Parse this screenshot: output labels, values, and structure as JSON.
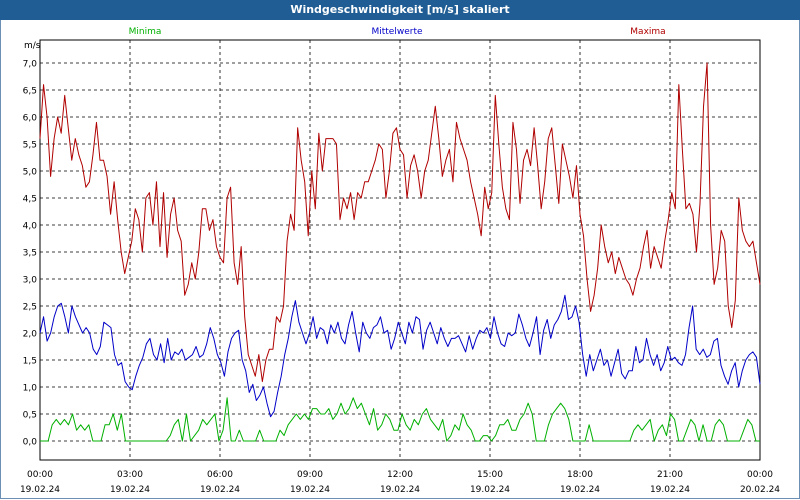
{
  "window": {
    "title": "Windgeschwindigkeit [m/s] skaliert"
  },
  "chart_data": {
    "type": "line",
    "title": "Windgeschwindigkeit [m/s] skaliert",
    "ylabel": "m/s",
    "ylim": [
      0,
      7.5
    ],
    "xlim": [
      0,
      24
    ],
    "grid": true,
    "legend": "top",
    "y_ticks": [
      "0,0",
      "0,5",
      "1,0",
      "1,5",
      "2,0",
      "2,5",
      "3,0",
      "3,5",
      "4,0",
      "4,5",
      "5,0",
      "5,5",
      "6,0",
      "6,5",
      "7,0"
    ],
    "x_ticks": [
      {
        "time": "00:00",
        "date": "19.02.24"
      },
      {
        "time": "03:00",
        "date": "19.02.24"
      },
      {
        "time": "06:00",
        "date": "19.02.24"
      },
      {
        "time": "09:00",
        "date": "19.02.24"
      },
      {
        "time": "12:00",
        "date": "19.02.24"
      },
      {
        "time": "15:00",
        "date": "19.02.24"
      },
      {
        "time": "18:00",
        "date": "19.02.24"
      },
      {
        "time": "21:00",
        "date": "19.02.24"
      },
      {
        "time": "00:00",
        "date": "20.02.24"
      }
    ],
    "series": [
      {
        "name": "Minima",
        "color": "#00b000",
        "values": [
          0,
          0,
          0,
          0.3,
          0.4,
          0.3,
          0.4,
          0.3,
          0.5,
          0.2,
          0.3,
          0.2,
          0.3,
          0,
          0,
          0,
          0.3,
          0.3,
          0.5,
          0.2,
          0.5,
          0,
          0,
          0,
          0,
          0,
          0,
          0,
          0,
          0,
          0,
          0,
          0.1,
          0.3,
          0.4,
          0,
          0.5,
          0,
          0.1,
          0.2,
          0.4,
          0.3,
          0.4,
          0.5,
          0,
          0.2,
          0.8,
          0,
          0,
          0.2,
          0,
          0,
          0,
          0,
          0.2,
          0,
          0,
          0,
          0,
          0.2,
          0.1,
          0.3,
          0.4,
          0.5,
          0.4,
          0.5,
          0.4,
          0.6,
          0.6,
          0.5,
          0.5,
          0.6,
          0.4,
          0.5,
          0.7,
          0.5,
          0.6,
          0.8,
          0.6,
          0.7,
          0.5,
          0.3,
          0.6,
          0.2,
          0.3,
          0.5,
          0.4,
          0.2,
          0.2,
          0.5,
          0.3,
          0.2,
          0.4,
          0.3,
          0.5,
          0.6,
          0.4,
          0.3,
          0.2,
          0.4,
          0,
          0.1,
          0.3,
          0.2,
          0.5,
          0.3,
          0.2,
          0,
          0,
          0.1,
          0.1,
          0,
          0.1,
          0.3,
          0.3,
          0.4,
          0.2,
          0.2,
          0.4,
          0.5,
          0.7,
          0.5,
          0,
          0,
          0,
          0.3,
          0.5,
          0.6,
          0.7,
          0.6,
          0.4,
          0,
          0,
          0,
          0,
          0.3,
          0,
          0,
          0,
          0,
          0,
          0,
          0,
          0,
          0,
          0,
          0.2,
          0.3,
          0.2,
          0.3,
          0.4,
          0,
          0.2,
          0.3,
          0.1,
          0.5,
          0.4,
          0,
          0,
          0.2,
          0.4,
          0.3,
          0,
          0.3,
          0,
          0,
          0.3,
          0.4,
          0.3,
          0,
          0,
          0,
          0,
          0.2,
          0.4,
          0.3,
          0,
          0
        ]
      },
      {
        "name": "Mittelwerte",
        "color": "#0000c8",
        "values": [
          2.0,
          2.3,
          1.85,
          2.0,
          2.3,
          2.5,
          2.55,
          2.3,
          2.0,
          2.5,
          2.3,
          2.15,
          2.0,
          2.1,
          2.0,
          1.7,
          1.6,
          1.75,
          2.2,
          2.15,
          2.1,
          1.6,
          1.4,
          1.45,
          1.1,
          1.0,
          0.95,
          1.2,
          1.4,
          1.55,
          1.8,
          1.9,
          1.6,
          1.5,
          1.8,
          1.45,
          1.9,
          1.5,
          1.65,
          1.6,
          1.7,
          1.5,
          1.55,
          1.6,
          1.75,
          1.55,
          1.6,
          1.8,
          2.1,
          1.9,
          1.6,
          1.45,
          1.2,
          1.65,
          1.9,
          2.0,
          2.05,
          1.5,
          1.3,
          0.9,
          1.05,
          0.75,
          0.85,
          1.0,
          0.7,
          0.45,
          0.55,
          0.9,
          1.2,
          1.6,
          1.9,
          2.3,
          2.6,
          2.2,
          2.0,
          1.8,
          2.0,
          2.3,
          1.9,
          2.1,
          2.05,
          1.8,
          2.15,
          2.0,
          2.2,
          1.9,
          1.8,
          2.15,
          2.4,
          2.0,
          1.65,
          2.2,
          2.0,
          1.9,
          2.1,
          2.15,
          2.3,
          2.0,
          2.05,
          1.7,
          1.9,
          2.2,
          2.0,
          1.8,
          2.2,
          2.0,
          2.3,
          2.25,
          1.7,
          2.05,
          2.2,
          2.0,
          1.8,
          2.1,
          1.9,
          1.75,
          1.9,
          1.9,
          1.95,
          1.8,
          1.65,
          1.95,
          1.7,
          1.9,
          2.05,
          2.0,
          2.1,
          1.9,
          2.3,
          2.0,
          1.8,
          1.75,
          2.0,
          1.95,
          2.0,
          2.35,
          2.15,
          1.9,
          1.75,
          2.0,
          2.3,
          1.6,
          2.05,
          2.25,
          1.9,
          2.15,
          2.25,
          2.4,
          2.7,
          2.25,
          2.3,
          2.5,
          2.2,
          1.6,
          1.2,
          1.6,
          1.3,
          1.5,
          1.7,
          1.4,
          1.5,
          1.2,
          1.45,
          1.7,
          1.25,
          1.15,
          1.3,
          1.3,
          1.75,
          1.45,
          1.5,
          1.9,
          1.6,
          1.4,
          1.6,
          1.3,
          1.45,
          1.75,
          1.5,
          1.55,
          1.45,
          1.4,
          1.6,
          2.1,
          2.5,
          1.7,
          1.6,
          1.7,
          1.55,
          1.6,
          1.85,
          1.9,
          1.4,
          1.2,
          1.05,
          1.3,
          1.45,
          1.0,
          1.3,
          1.5,
          1.6,
          1.65,
          1.55,
          1.05
        ]
      },
      {
        "name": "Maxima",
        "color": "#b00000",
        "values": [
          5.6,
          6.6,
          6.0,
          4.9,
          5.6,
          6.0,
          5.7,
          6.4,
          5.8,
          5.2,
          5.6,
          5.3,
          5.1,
          4.7,
          4.8,
          5.3,
          5.9,
          5.2,
          5.2,
          4.9,
          4.2,
          4.8,
          4.1,
          3.5,
          3.1,
          3.4,
          3.7,
          4.3,
          4.1,
          3.5,
          4.5,
          4.6,
          4.0,
          4.8,
          3.6,
          4.6,
          3.4,
          4.2,
          4.5,
          3.9,
          3.7,
          2.7,
          2.9,
          3.3,
          3.0,
          3.5,
          4.3,
          4.3,
          3.9,
          4.1,
          3.6,
          3.4,
          3.3,
          4.5,
          4.7,
          3.3,
          2.9,
          3.6,
          2.3,
          1.6,
          1.4,
          1.2,
          1.6,
          1.1,
          1.5,
          1.7,
          1.7,
          2.3,
          2.2,
          2.5,
          3.7,
          4.2,
          3.9,
          5.8,
          5.2,
          4.8,
          3.8,
          5.0,
          4.3,
          5.7,
          5.0,
          5.6,
          5.6,
          5.6,
          5.5,
          4.1,
          4.5,
          4.3,
          4.6,
          4.1,
          4.6,
          4.5,
          4.8,
          4.8,
          5.0,
          5.2,
          5.5,
          5.4,
          4.5,
          5.0,
          5.7,
          5.8,
          5.4,
          5.3,
          4.5,
          5.1,
          5.3,
          5.0,
          4.5,
          5.0,
          5.2,
          5.7,
          6.2,
          5.6,
          4.9,
          5.2,
          5.4,
          4.8,
          5.9,
          5.6,
          5.4,
          5.2,
          4.8,
          4.5,
          4.2,
          3.8,
          4.7,
          4.3,
          4.6,
          6.4,
          5.5,
          4.7,
          4.3,
          4.1,
          5.9,
          5.4,
          4.4,
          5.2,
          5.4,
          5.1,
          5.8,
          5.1,
          4.3,
          4.8,
          5.6,
          5.8,
          5.1,
          4.4,
          5.5,
          5.2,
          4.9,
          4.5,
          5.1,
          4.2,
          3.8,
          3.0,
          2.4,
          2.7,
          3.2,
          4.0,
          3.6,
          3.3,
          3.5,
          3.1,
          3.4,
          3.2,
          3.0,
          2.9,
          2.7,
          3.0,
          3.2,
          3.6,
          3.9,
          3.2,
          3.6,
          3.4,
          3.2,
          3.7,
          4.1,
          4.6,
          4.3,
          6.6,
          5.4,
          4.3,
          4.4,
          4.2,
          3.5,
          4.4,
          6.2,
          7.0,
          4.0,
          2.9,
          3.2,
          3.9,
          3.7,
          2.5,
          2.1,
          2.6,
          4.5,
          3.9,
          3.7,
          3.6,
          3.7,
          3.3,
          2.9
        ]
      }
    ]
  }
}
